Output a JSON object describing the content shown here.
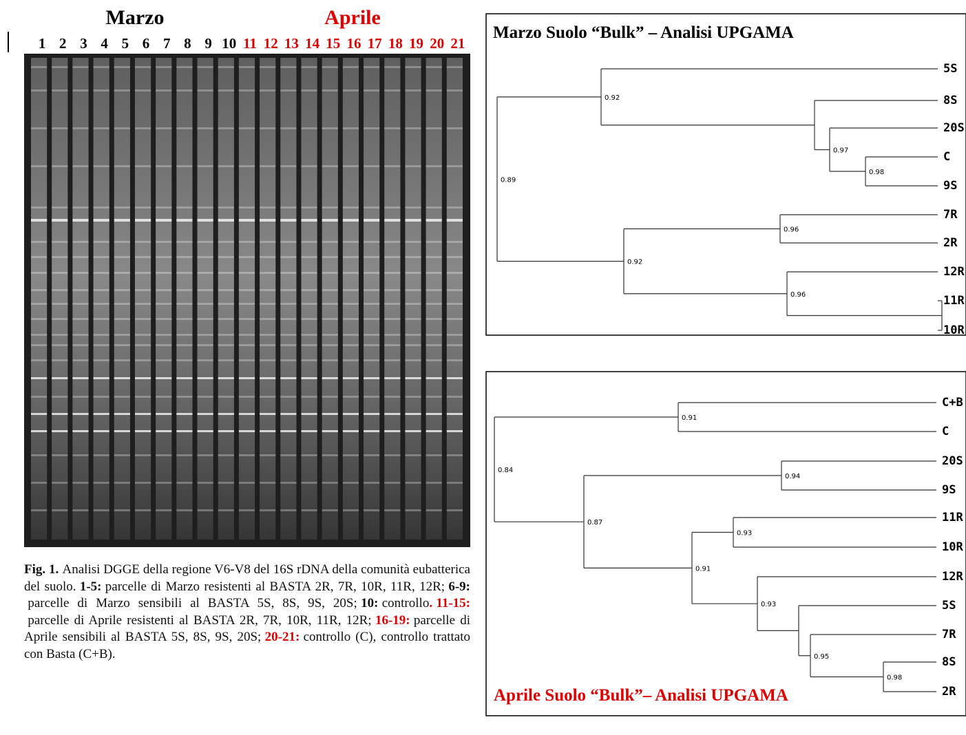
{
  "gel": {
    "label_marzo": "Marzo",
    "label_aprile": "Aprile",
    "lanes": [
      {
        "text": "1",
        "color": "#000000"
      },
      {
        "text": "2",
        "color": "#000000"
      },
      {
        "text": "3",
        "color": "#000000"
      },
      {
        "text": "4",
        "color": "#000000"
      },
      {
        "text": "5",
        "color": "#000000"
      },
      {
        "text": "6",
        "color": "#000000"
      },
      {
        "text": "7",
        "color": "#000000"
      },
      {
        "text": "8",
        "color": "#000000"
      },
      {
        "text": "9",
        "color": "#000000"
      },
      {
        "text": "10",
        "color": "#000000"
      },
      {
        "text": "11",
        "color": "#e00000"
      },
      {
        "text": "12",
        "color": "#e00000"
      },
      {
        "text": "13",
        "color": "#e00000"
      },
      {
        "text": "14",
        "color": "#e00000"
      },
      {
        "text": "15",
        "color": "#e00000"
      },
      {
        "text": "16",
        "color": "#e00000"
      },
      {
        "text": "17",
        "color": "#e00000"
      },
      {
        "text": "18",
        "color": "#e00000"
      },
      {
        "text": "19",
        "color": "#e00000"
      },
      {
        "text": "20",
        "color": "#e00000"
      },
      {
        "text": "21",
        "color": "#e00000"
      }
    ]
  },
  "caption": [
    {
      "text": "Fig. 1.",
      "bold": true
    },
    {
      "text": "Analisi DGGE della regione V6-V8 del 16S rDNA della comunità eubatterica del suolo."
    },
    {
      "text": "1-5:",
      "bold": true
    },
    {
      "text": "parcelle di Marzo resistenti al BASTA 2R, 7R, 10R, 11R, 12R;"
    },
    {
      "text": "6-9:",
      "bold": true
    },
    {
      "text": "parcelle di Marzo sensibili al BASTA 5S, 8S, 9S, 20S;"
    },
    {
      "text": "10:",
      "bold": true
    },
    {
      "text": "controllo"
    },
    {
      "text": ".",
      "bold": true,
      "color": "#e00000"
    },
    {
      "text": "11-15:",
      "bold": true,
      "color": "#e00000"
    },
    {
      "text": "parcelle di Aprile resistenti al BASTA 2R, 7R, 10R, 11R, 12R;"
    },
    {
      "text": "16-19:",
      "bold": true,
      "color": "#e00000"
    },
    {
      "text": "parcelle di Aprile sensibili al BASTA 5S, 8S, 9S, 20S;"
    },
    {
      "text": "20-21:",
      "bold": true,
      "color": "#e00000"
    },
    {
      "text": "controllo (C), controllo trattato con Basta (C+B)."
    }
  ],
  "dendrogram_marzo": {
    "title": "Marzo Suolo “Bulk” – Analisi UPGAMA",
    "title_color": "#000000",
    "leaves": [
      "5S",
      "8S",
      "20S",
      "C",
      "9S",
      "7R",
      "2R",
      "12R",
      "11R",
      "10R"
    ],
    "node_labels": [
      "0.92",
      "0.97",
      "0.98",
      "0.89",
      "0.96",
      "0.92",
      "0.96"
    ]
  },
  "dendrogram_aprile": {
    "title": "Aprile Suolo “Bulk”– Analisi UPGAMA",
    "title_color": "#e00000",
    "leaves": [
      "C+B",
      "C",
      "20S",
      "9S",
      "11R",
      "10R",
      "12R",
      "5S",
      "7R",
      "8S",
      "2R"
    ],
    "node_labels": [
      "0.91",
      "0.84",
      "0.94",
      "0.87",
      "0.93",
      "0.91",
      "0.93",
      "0.95",
      "0.98"
    ]
  }
}
